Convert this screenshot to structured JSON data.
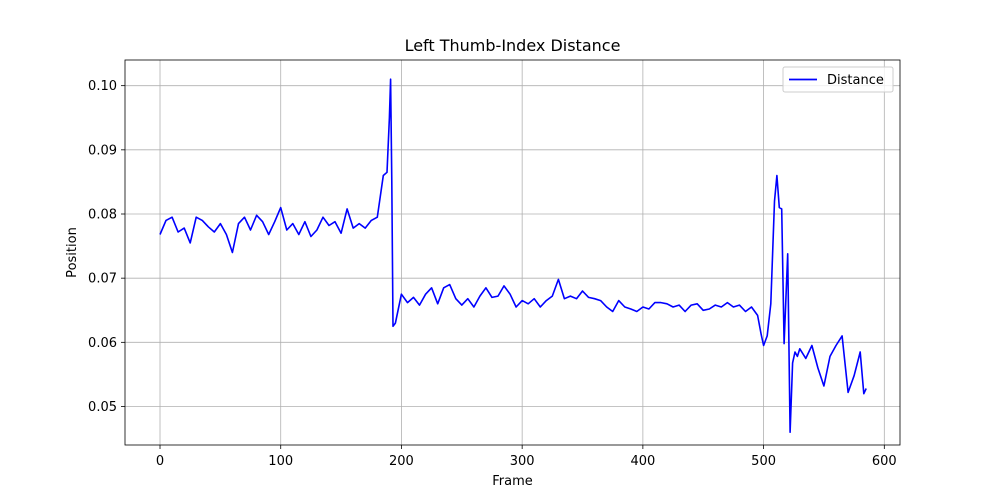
{
  "chart_data": {
    "type": "line",
    "title": "Left Thumb-Index Distance",
    "xlabel": "Frame",
    "ylabel": "Position",
    "xlim": [
      -29,
      613
    ],
    "ylim": [
      0.044,
      0.104
    ],
    "xticks": [
      0,
      100,
      200,
      300,
      400,
      500,
      600
    ],
    "yticks": [
      0.05,
      0.06,
      0.07,
      0.08,
      0.09,
      0.1
    ],
    "ytick_labels": [
      "0.05",
      "0.06",
      "0.07",
      "0.08",
      "0.09",
      "0.10"
    ],
    "grid": true,
    "legend": "top-right",
    "series": [
      {
        "name": "Distance",
        "color": "#0000ff",
        "x": [
          0,
          5,
          10,
          15,
          20,
          25,
          30,
          35,
          40,
          45,
          50,
          55,
          60,
          65,
          70,
          75,
          80,
          85,
          90,
          95,
          100,
          105,
          110,
          115,
          120,
          125,
          130,
          135,
          140,
          145,
          150,
          155,
          160,
          165,
          170,
          175,
          180,
          185,
          188,
          190,
          191,
          192,
          193,
          195,
          200,
          205,
          210,
          215,
          220,
          225,
          230,
          235,
          240,
          245,
          250,
          255,
          260,
          265,
          270,
          275,
          280,
          285,
          290,
          295,
          300,
          305,
          310,
          315,
          320,
          325,
          330,
          335,
          340,
          345,
          350,
          355,
          360,
          365,
          370,
          375,
          380,
          385,
          390,
          395,
          400,
          405,
          410,
          415,
          420,
          425,
          430,
          435,
          440,
          445,
          450,
          455,
          460,
          465,
          470,
          475,
          480,
          485,
          490,
          495,
          498,
          500,
          503,
          506,
          509,
          511,
          513,
          515,
          517,
          520,
          522,
          524,
          526,
          528,
          530,
          535,
          540,
          545,
          550,
          555,
          560,
          565,
          570,
          575,
          580,
          583,
          585
        ],
        "y": [
          0.0768,
          0.079,
          0.0795,
          0.0772,
          0.0778,
          0.0755,
          0.0795,
          0.079,
          0.078,
          0.0772,
          0.0785,
          0.0768,
          0.074,
          0.0785,
          0.0795,
          0.0775,
          0.0798,
          0.0788,
          0.0768,
          0.0788,
          0.081,
          0.0775,
          0.0785,
          0.0768,
          0.0788,
          0.0765,
          0.0775,
          0.0795,
          0.0782,
          0.0788,
          0.077,
          0.0808,
          0.0778,
          0.0785,
          0.0778,
          0.079,
          0.0795,
          0.086,
          0.0865,
          0.095,
          0.101,
          0.085,
          0.0625,
          0.063,
          0.0675,
          0.0662,
          0.067,
          0.0658,
          0.0675,
          0.0685,
          0.066,
          0.0685,
          0.069,
          0.0668,
          0.0658,
          0.0668,
          0.0655,
          0.0672,
          0.0685,
          0.067,
          0.0672,
          0.0688,
          0.0675,
          0.0655,
          0.0665,
          0.066,
          0.0668,
          0.0655,
          0.0665,
          0.0672,
          0.0698,
          0.0668,
          0.0672,
          0.0668,
          0.068,
          0.067,
          0.0668,
          0.0665,
          0.0655,
          0.0648,
          0.0665,
          0.0655,
          0.0652,
          0.0648,
          0.0655,
          0.0652,
          0.0662,
          0.0662,
          0.066,
          0.0655,
          0.0658,
          0.0648,
          0.0658,
          0.066,
          0.065,
          0.0652,
          0.0658,
          0.0655,
          0.0662,
          0.0655,
          0.0658,
          0.0648,
          0.0655,
          0.0642,
          0.0612,
          0.0595,
          0.061,
          0.066,
          0.082,
          0.086,
          0.081,
          0.0808,
          0.0598,
          0.0738,
          0.046,
          0.0568,
          0.0585,
          0.0578,
          0.059,
          0.0575,
          0.0595,
          0.056,
          0.0532,
          0.0578,
          0.0595,
          0.061,
          0.0522,
          0.0548,
          0.0585,
          0.052,
          0.0528
        ]
      }
    ]
  }
}
